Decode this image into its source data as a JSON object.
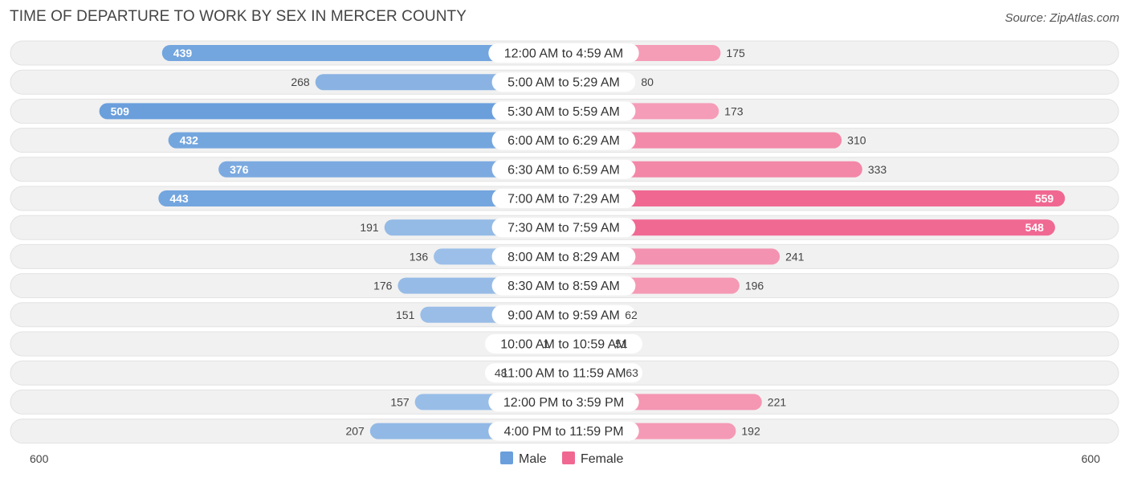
{
  "title": "TIME OF DEPARTURE TO WORK BY SEX IN MERCER COUNTY",
  "source": "Source: ZipAtlas.com",
  "chart_data": {
    "type": "bar",
    "orientation": "horizontal-diverging",
    "categories": [
      "12:00 AM to 4:59 AM",
      "5:00 AM to 5:29 AM",
      "5:30 AM to 5:59 AM",
      "6:00 AM to 6:29 AM",
      "6:30 AM to 6:59 AM",
      "7:00 AM to 7:29 AM",
      "7:30 AM to 7:59 AM",
      "8:00 AM to 8:29 AM",
      "8:30 AM to 8:59 AM",
      "9:00 AM to 9:59 AM",
      "10:00 AM to 10:59 AM",
      "11:00 AM to 11:59 AM",
      "12:00 PM to 3:59 PM",
      "4:00 PM to 11:59 PM"
    ],
    "series": [
      {
        "name": "Male",
        "color": "#6a9fdc",
        "values": [
          439,
          268,
          509,
          432,
          376,
          443,
          191,
          136,
          176,
          151,
          1,
          48,
          157,
          207
        ]
      },
      {
        "name": "Female",
        "color": "#f06892",
        "values": [
          175,
          80,
          173,
          310,
          333,
          559,
          548,
          241,
          196,
          62,
          51,
          63,
          221,
          192
        ]
      }
    ],
    "axis_max": 600,
    "axis_labels": {
      "left": "600",
      "right": "600"
    },
    "legend_position": "bottom-center"
  }
}
